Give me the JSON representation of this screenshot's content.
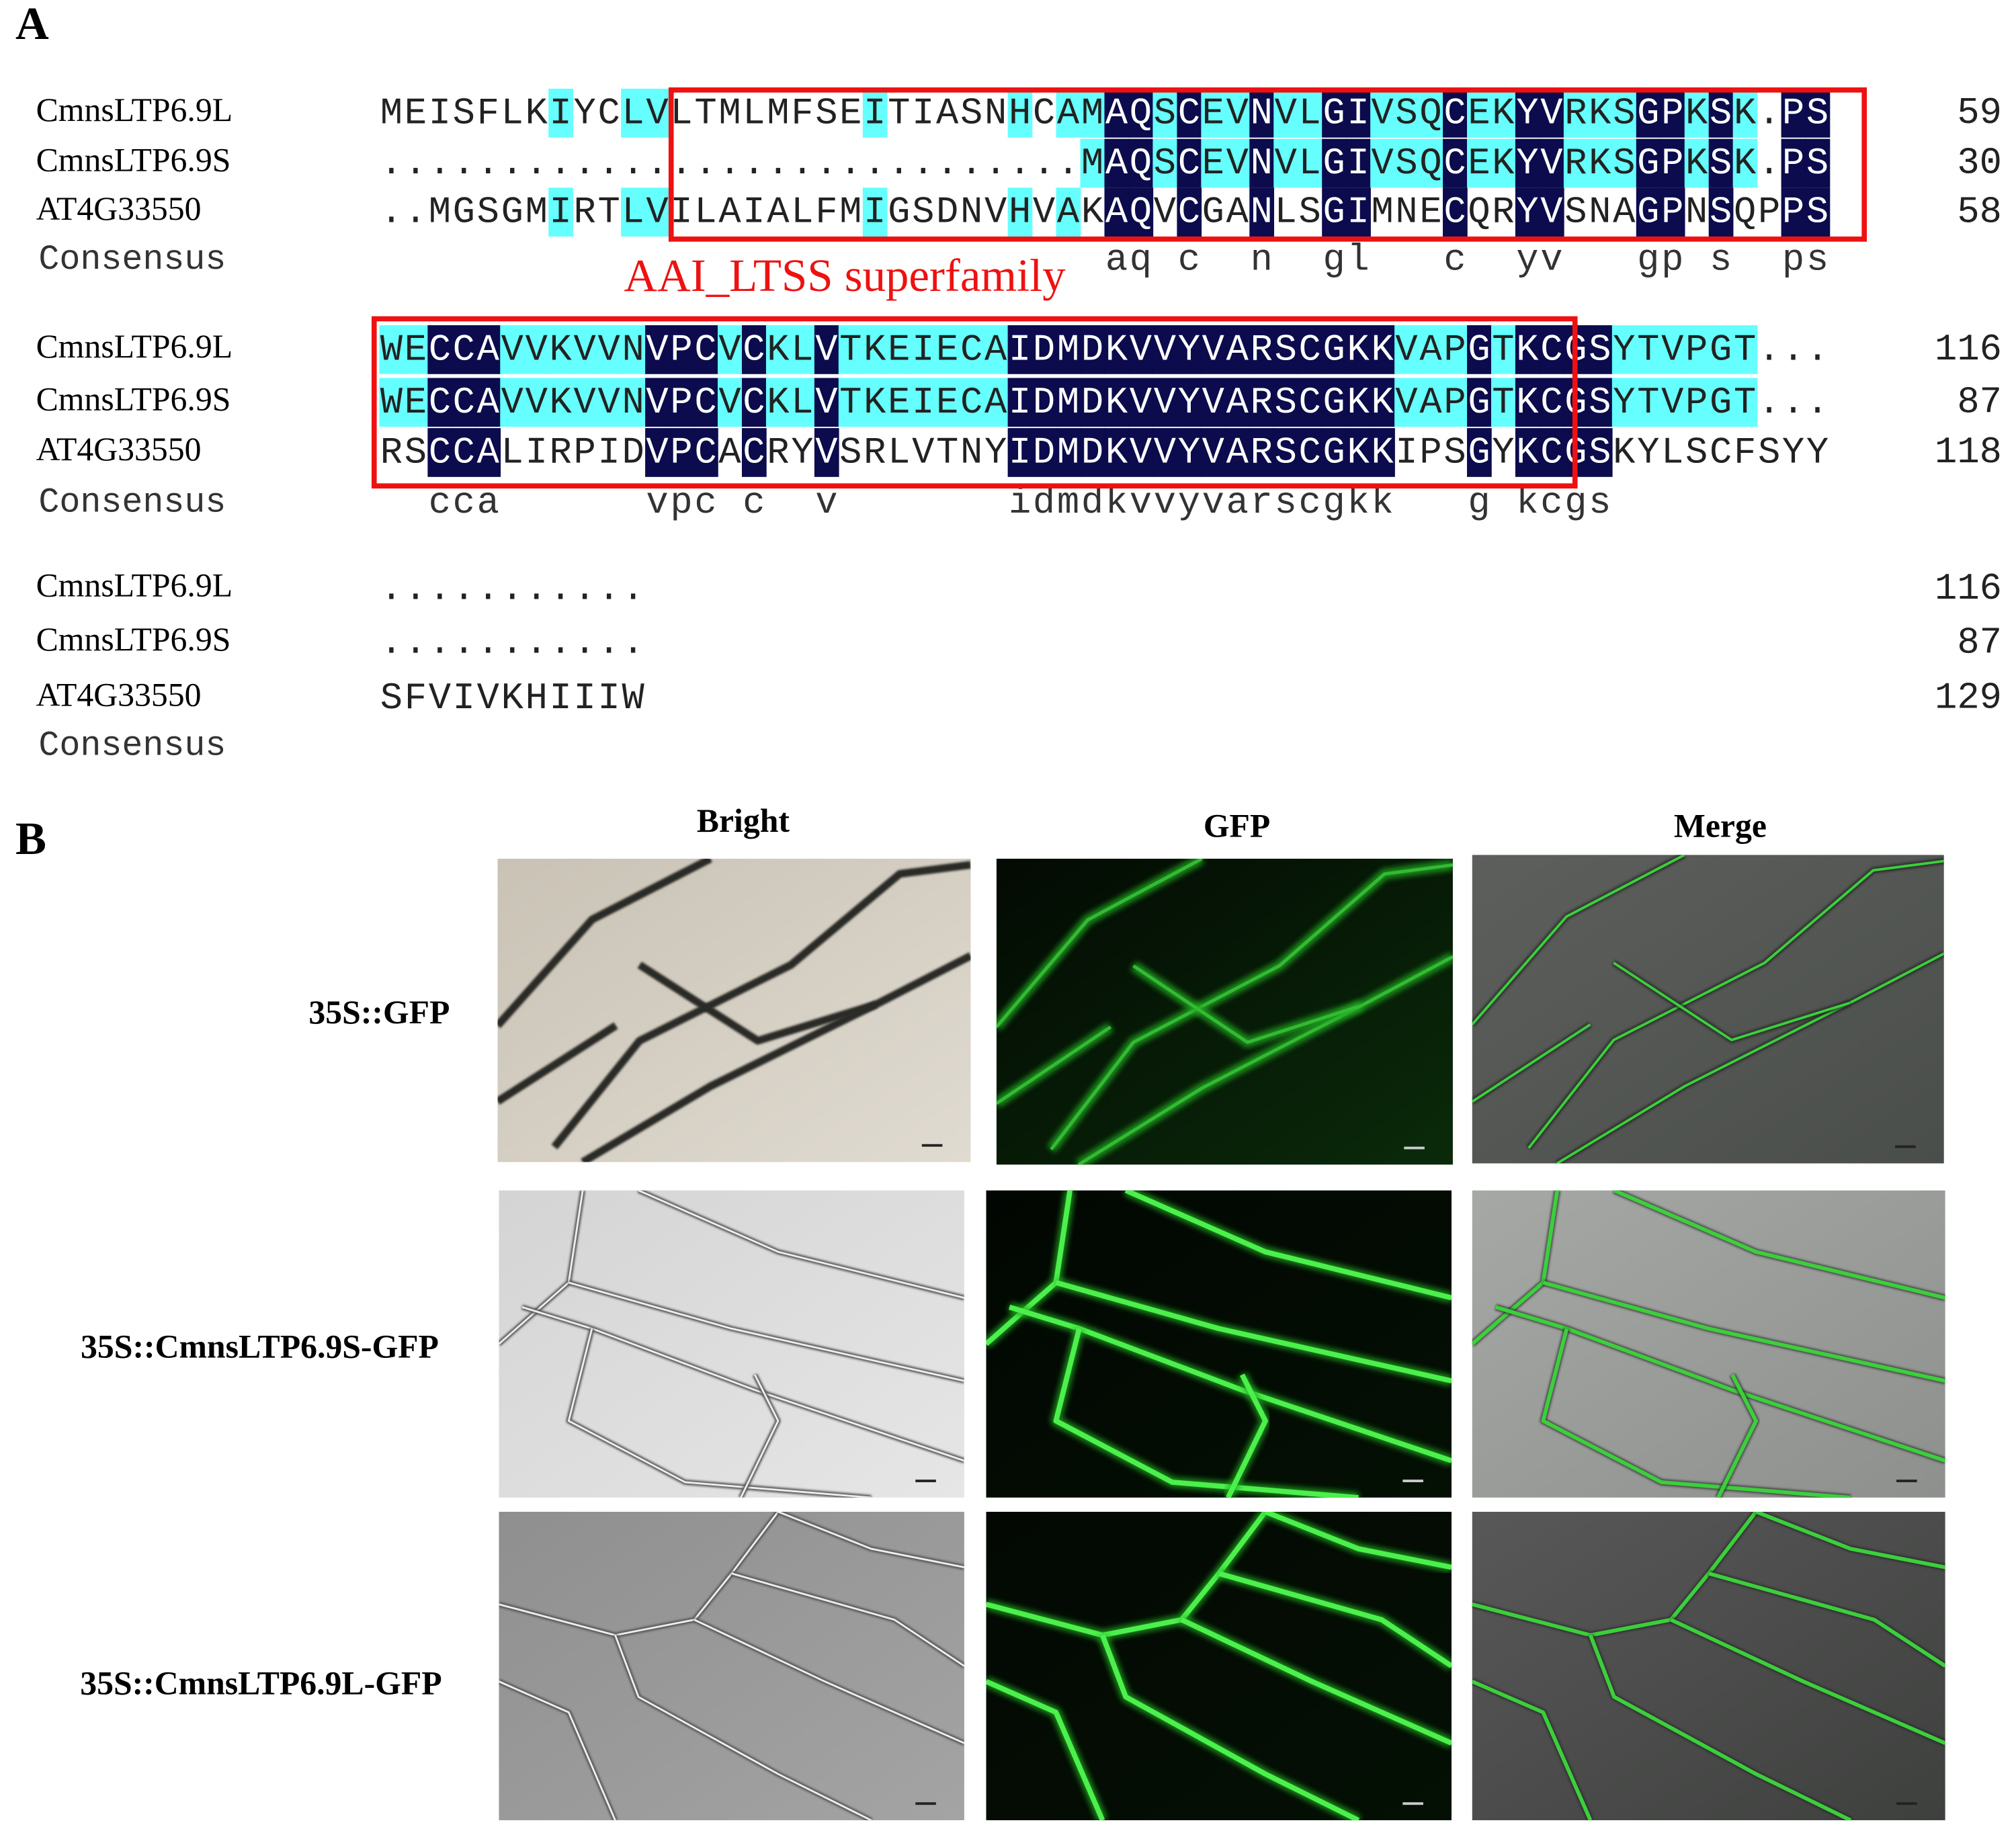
{
  "panel_a": {
    "label": "A",
    "annotation": "AAI_LTSS superfamily",
    "consensus_label": "Consensus",
    "blocks": [
      {
        "rows": [
          {
            "name": "CmnsLTP6.9L",
            "sequence": "MEISFLKIYCLVLTMLMFSEITIASNHCAMAQSCEVNVLGIVSQCEKYVRKSGPKSK.PS",
            "end": 59
          },
          {
            "name": "CmnsLTP6.9S",
            "sequence": ".............................MAQSCEVNVLGIVSQCEKYVRKSGPKSK.PS",
            "end": 30
          },
          {
            "name": "AT4G33550",
            "sequence": "..MGSGMIRTLVILAIALFMIGSDNVHVAKAQVCGANLSGIMNECQRYVSNAGPNSQPPS",
            "end": 58
          }
        ],
        "consensus": "                              aq c  n  gl   c  yv   gp s  ps"
      },
      {
        "rows": [
          {
            "name": "CmnsLTP6.9L",
            "sequence": "WECCAVVKVVNVPCVCKLVTKEIECAIDMDKVVYVARSCGKKVAPGTKCGSYTVPGT...",
            "end": 116
          },
          {
            "name": "CmnsLTP6.9S",
            "sequence": "WECCAVVKVVNVPCVCKLVTKEIECAIDMDKVVYVARSCGKKVAPGTKCGSYTVPGT...",
            "end": 87
          },
          {
            "name": "AT4G33550",
            "sequence": "RSCCALIRPIDVPCACRYVSRLVTNYIDMDKVVYVARSCGKKIPSGYKCGSKYLSCFSYY",
            "end": 118
          }
        ],
        "consensus": "  cca      vpc c  v       idmdkvvyvarscgkk   g kcgs"
      },
      {
        "rows": [
          {
            "name": "CmnsLTP6.9L",
            "sequence": "...........",
            "end": 116
          },
          {
            "name": "CmnsLTP6.9S",
            "sequence": "...........",
            "end": 87
          },
          {
            "name": "AT4G33550",
            "sequence": "SFVIVKHIIIW",
            "end": 129
          }
        ]
      }
    ]
  },
  "panel_b": {
    "label": "B",
    "columns": [
      "Bright",
      "GFP",
      "Merge"
    ],
    "rows": [
      "35S::GFP",
      "35S::CmnsLTP6.9S-GFP",
      "35S::CmnsLTP6.9L-GFP"
    ]
  }
}
